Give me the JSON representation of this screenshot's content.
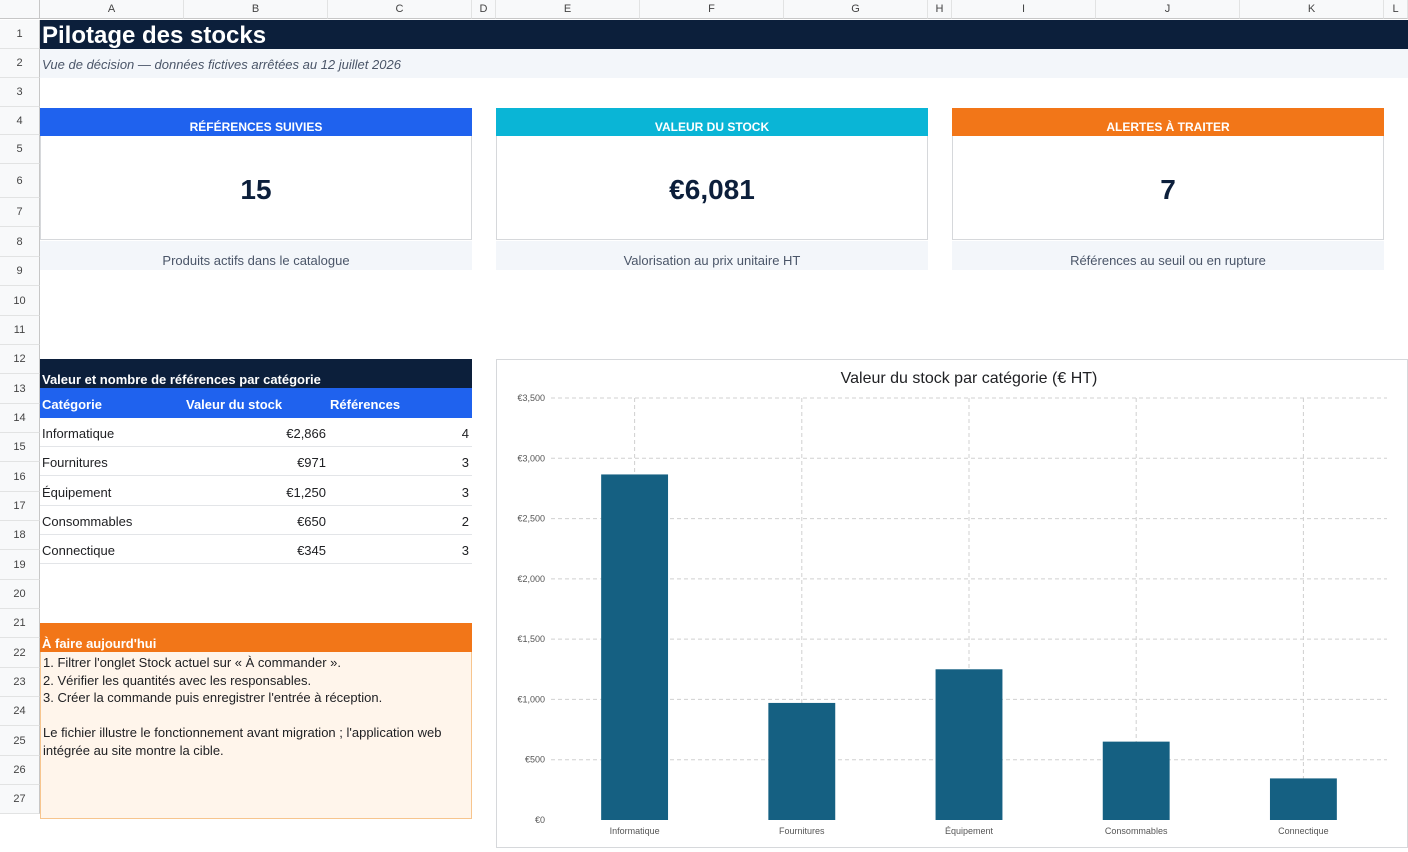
{
  "sheet": {
    "columns": [
      "A",
      "B",
      "C",
      "D",
      "E",
      "F",
      "G",
      "H",
      "I",
      "J",
      "K",
      "L"
    ],
    "rows": [
      "1",
      "2",
      "3",
      "4",
      "5",
      "6",
      "7",
      "8",
      "9",
      "10",
      "11",
      "12",
      "13",
      "14",
      "15",
      "16",
      "17",
      "18",
      "19",
      "20",
      "21",
      "22",
      "23",
      "24",
      "25",
      "26",
      "27"
    ]
  },
  "header": {
    "title": "Pilotage des stocks",
    "subtitle": "Vue de décision — données fictives arrêtées au 12 juillet 2026"
  },
  "kpis": [
    {
      "label": "RÉFÉRENCES SUIVIES",
      "value": "15",
      "caption": "Produits actifs dans le catalogue",
      "color": "#1f62ee"
    },
    {
      "label": "VALEUR DU STOCK",
      "value": "€6,081",
      "caption": "Valorisation au prix unitaire HT",
      "color": "#0ab5d6"
    },
    {
      "label": "ALERTES À TRAITER",
      "value": "7",
      "caption": "Références au seuil ou en rupture",
      "color": "#f27618"
    }
  ],
  "category_table": {
    "title": "Valeur et nombre de références par catégorie",
    "headers": [
      "Catégorie",
      "Valeur du stock",
      "Références"
    ],
    "rows": [
      [
        "Informatique",
        "€2,866",
        "4"
      ],
      [
        "Fournitures",
        "€971",
        "3"
      ],
      [
        "Équipement",
        "€1,250",
        "3"
      ],
      [
        "Consommables",
        "€650",
        "2"
      ],
      [
        "Connectique",
        "€345",
        "3"
      ]
    ]
  },
  "todo": {
    "title": "À faire aujourd'hui",
    "lines": [
      "1. Filtrer l'onglet Stock actuel sur « À commander ».",
      "2. Vérifier les quantités avec les responsables.",
      "3. Créer la commande puis enregistrer l'entrée à réception.",
      "",
      "Le fichier illustre le fonctionnement avant migration ; l'application web",
      "intégrée au site montre la cible."
    ]
  },
  "chart_data": {
    "type": "bar",
    "title": "Valeur du stock par catégorie (€ HT)",
    "categories": [
      "Informatique",
      "Fournitures",
      "Équipement",
      "Consommables",
      "Connectique"
    ],
    "values": [
      2866,
      971,
      1250,
      650,
      345
    ],
    "ylim": [
      0,
      3500
    ],
    "yticks": [
      0,
      500,
      1000,
      1500,
      2000,
      2500,
      3000,
      3500
    ],
    "ytick_labels": [
      "€0",
      "€500",
      "€1,000",
      "€1,500",
      "€2,000",
      "€2,500",
      "€3,000",
      "€3,500"
    ],
    "grid": true,
    "bar_color": "#156082",
    "xlabel": "",
    "ylabel": ""
  }
}
